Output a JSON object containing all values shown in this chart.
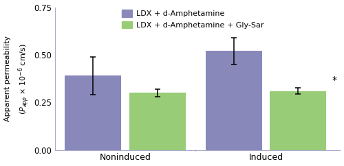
{
  "groups": [
    "Noninduced",
    "Induced"
  ],
  "bar_labels": [
    "LDX + d-Amphetamine",
    "LDX + d-Amphetamine + Gly-Sar"
  ],
  "bar_colors": [
    "#8888bb",
    "#99cc77"
  ],
  "values": [
    [
      0.39,
      0.3
    ],
    [
      0.52,
      0.31
    ]
  ],
  "errors": [
    [
      0.1,
      0.02
    ],
    [
      0.07,
      0.015
    ]
  ],
  "ylim": [
    0.0,
    0.75
  ],
  "yticks": [
    0.0,
    0.25,
    0.5,
    0.75
  ],
  "asterisk_text": "*",
  "bar_width": 0.28,
  "background_color": "#ffffff",
  "capsize": 3,
  "spine_color": "#aaaacc"
}
